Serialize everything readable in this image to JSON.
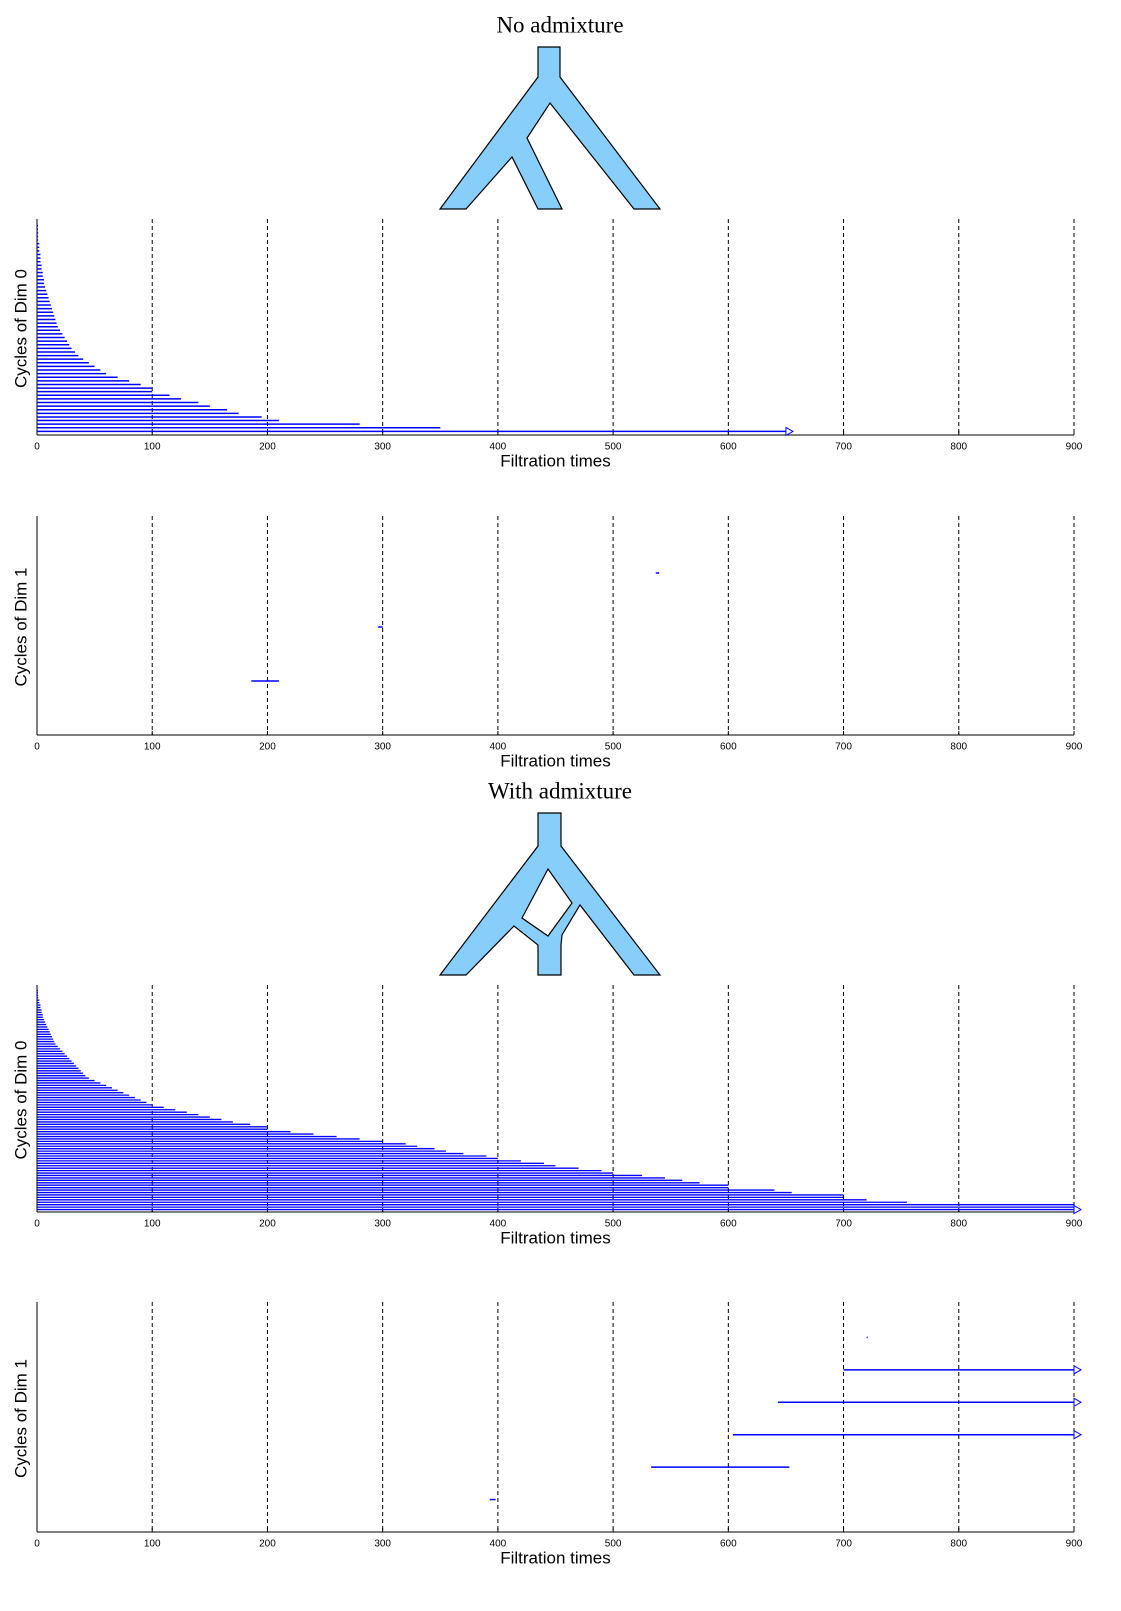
{
  "chart_data": [
    {
      "type": "barcode",
      "title": "No admixture",
      "xlabel": "Filtration times",
      "ylabel": "Cycles of Dim 0",
      "starts": [
        0,
        0,
        0,
        0,
        0,
        0,
        0,
        0,
        0,
        0,
        0,
        0,
        0,
        0,
        0,
        0,
        0,
        0,
        0,
        0,
        0,
        0,
        0,
        0,
        0,
        0,
        0,
        0,
        0,
        0,
        0,
        0,
        0,
        0,
        0,
        0,
        0,
        0,
        0,
        0,
        0,
        0,
        0,
        0,
        0,
        0,
        0,
        0,
        0,
        0,
        0,
        0,
        0,
        0,
        0,
        0,
        0,
        0
      ],
      "ends": [
        650,
        350,
        280,
        210,
        195,
        175,
        165,
        150,
        140,
        125,
        115,
        100,
        100,
        90,
        80,
        70,
        60,
        55,
        50,
        45,
        40,
        36,
        33,
        30,
        28,
        26,
        24,
        22,
        20,
        18,
        17,
        16,
        15,
        14,
        13,
        12,
        11,
        10,
        9,
        8,
        7,
        6,
        6,
        5,
        5,
        4,
        4,
        3,
        3,
        3,
        2,
        2,
        2,
        1,
        1,
        1,
        0,
        0
      ],
      "infinite": [
        0
      ],
      "color": "#0000ff",
      "grid": true,
      "xlim": [
        0,
        900
      ],
      "xticks": [
        0,
        100,
        200,
        300,
        400,
        500,
        600,
        700,
        800,
        900
      ]
    },
    {
      "type": "barcode",
      "xlabel": "Filtration times",
      "ylabel": "Cycles of Dim 1",
      "starts": [
        186,
        296,
        537
      ],
      "ends": [
        210,
        300,
        540
      ],
      "infinite": [],
      "color": "#0000ff",
      "grid": true,
      "xlim": [
        0,
        900
      ],
      "xticks": [
        0,
        100,
        200,
        300,
        400,
        500,
        600,
        700,
        800,
        900
      ]
    },
    {
      "type": "barcode",
      "title": "With admixture",
      "xlabel": "Filtration times",
      "ylabel": "Cycles of Dim 0",
      "starts": [
        0,
        0,
        0,
        0,
        0,
        0,
        0,
        0,
        0,
        0,
        0,
        0,
        0,
        0,
        0,
        0,
        0,
        0,
        0,
        0,
        0,
        0,
        0,
        0,
        0,
        0,
        0,
        0,
        0,
        0,
        0,
        0,
        0,
        0,
        0,
        0,
        0,
        0,
        0,
        0,
        0,
        0,
        0,
        0,
        0,
        0,
        0,
        0,
        0,
        0,
        0,
        0,
        0,
        0,
        0,
        0,
        0,
        0,
        0,
        0,
        0,
        0,
        0,
        0,
        0,
        0,
        0,
        0,
        0,
        0,
        0,
        0,
        0,
        0,
        0,
        0,
        0,
        0,
        0,
        0,
        0,
        0,
        0,
        0,
        0,
        0,
        0,
        0,
        0,
        0,
        0
      ],
      "ends": [
        900,
        900,
        900,
        755,
        720,
        700,
        700,
        655,
        640,
        600,
        600,
        575,
        560,
        545,
        525,
        500,
        490,
        470,
        450,
        440,
        420,
        400,
        390,
        370,
        355,
        345,
        330,
        320,
        300,
        280,
        260,
        240,
        220,
        200,
        200,
        185,
        170,
        160,
        150,
        140,
        130,
        120,
        110,
        100,
        95,
        90,
        85,
        80,
        75,
        70,
        65,
        60,
        55,
        50,
        45,
        42,
        40,
        38,
        36,
        34,
        32,
        30,
        28,
        26,
        24,
        22,
        20,
        18,
        16,
        15,
        14,
        13,
        12,
        11,
        10,
        9,
        8,
        7,
        6,
        5,
        5,
        4,
        4,
        3,
        3,
        2,
        2,
        1,
        1,
        0,
        0
      ],
      "infinite": [
        0
      ],
      "color": "#0000ff",
      "grid": true,
      "xlim": [
        0,
        900
      ],
      "xticks": [
        0,
        100,
        200,
        300,
        400,
        500,
        600,
        700,
        800,
        900
      ]
    },
    {
      "type": "barcode",
      "xlabel": "Filtration times",
      "ylabel": "Cycles of Dim 1",
      "starts": [
        393,
        533,
        604,
        643,
        700,
        720
      ],
      "ends": [
        398,
        653,
        900,
        900,
        900,
        721
      ],
      "infinite": [
        2,
        3,
        4
      ],
      "color": "#0000ff",
      "grid": true,
      "xlim": [
        0,
        900
      ],
      "xticks": [
        0,
        100,
        200,
        300,
        400,
        500,
        600,
        700,
        800,
        900
      ]
    }
  ]
}
